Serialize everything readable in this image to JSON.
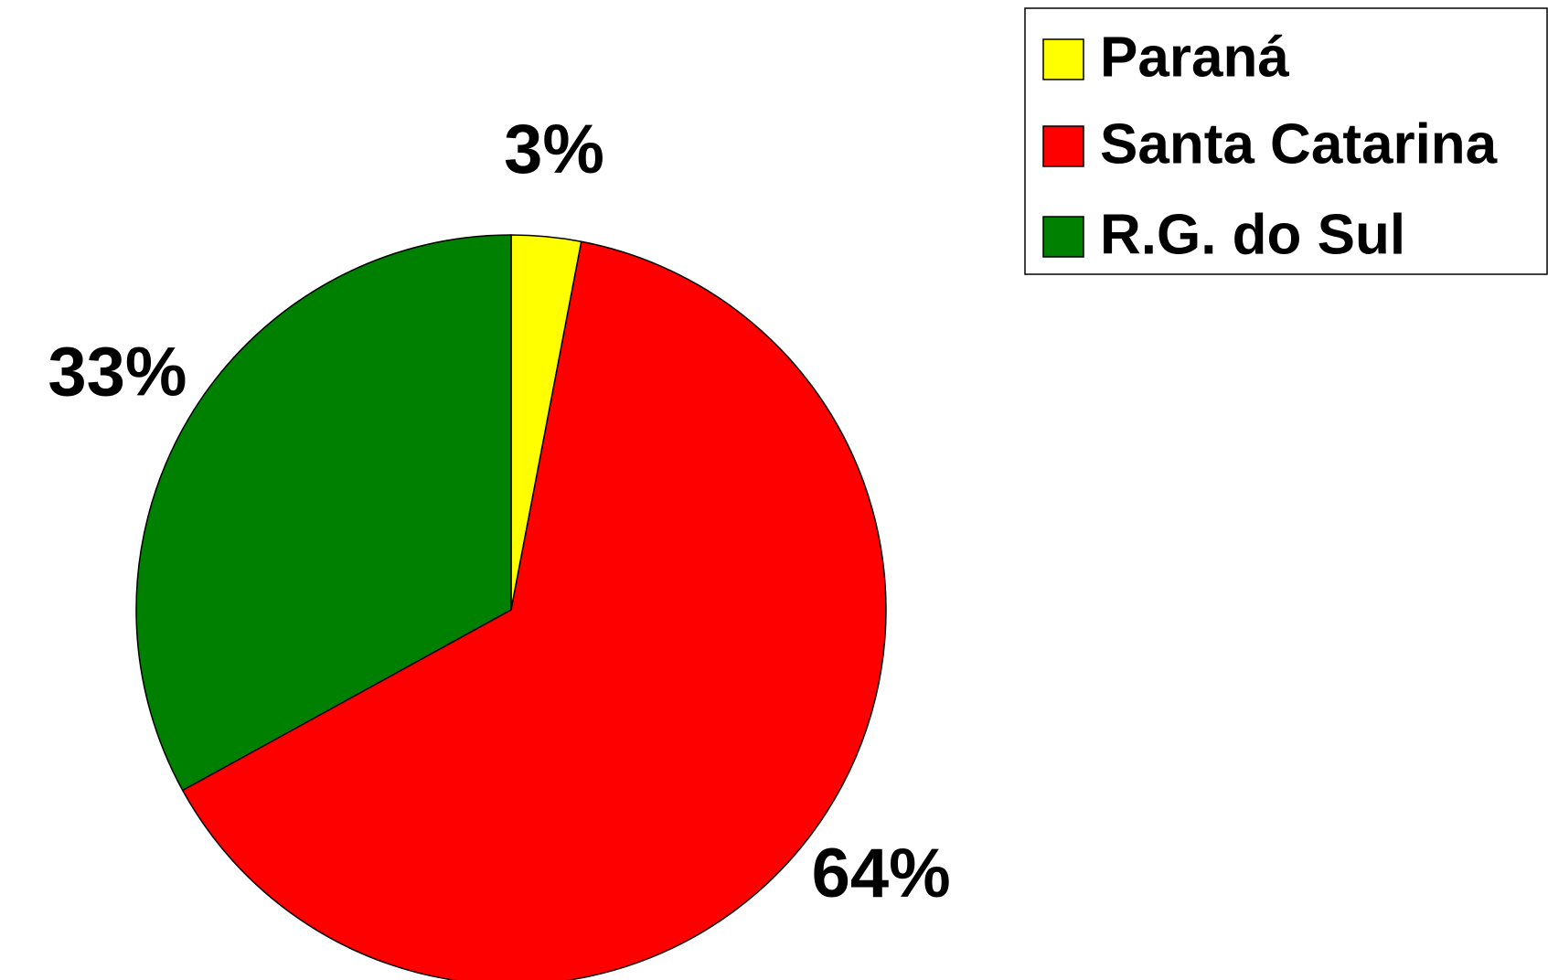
{
  "chart_data": {
    "type": "pie",
    "categories": [
      "Paraná",
      "Santa Catarina",
      "R.G. do Sul"
    ],
    "values": [
      3,
      64,
      33
    ],
    "value_labels": [
      "3%",
      "64%",
      "33%"
    ],
    "colors": [
      "#ffff00",
      "#ff0000",
      "#008000"
    ],
    "legend": "top-right"
  }
}
